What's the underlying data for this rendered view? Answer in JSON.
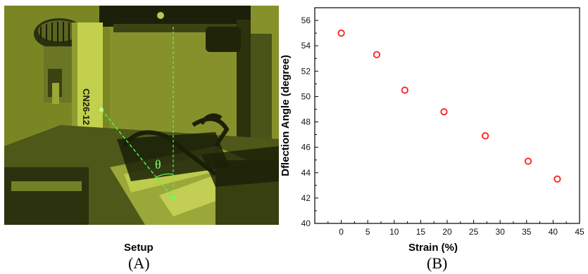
{
  "panel_a": {
    "label_text": "CN26-12",
    "angle_symbol": "θ",
    "caption": "Setup",
    "letter": "(A)"
  },
  "panel_b": {
    "letter": "(B)"
  },
  "colors": {
    "photo_tint": "#8c9a2a",
    "laser_green": "#48ff4a",
    "marker": "#ff1a1a"
  },
  "chart_data": {
    "type": "scatter",
    "title": "",
    "xlabel": "Strain (%)",
    "ylabel": "Dflection Angle (degree)",
    "xlim": [
      -5,
      45
    ],
    "ylim": [
      40,
      57
    ],
    "x_ticks": [
      0,
      5,
      10,
      15,
      20,
      25,
      30,
      35,
      40,
      45
    ],
    "y_ticks": [
      40,
      42,
      44,
      46,
      48,
      50,
      52,
      54,
      56
    ],
    "grid": false,
    "series": [
      {
        "marker": "open-circle",
        "points": [
          {
            "x": 0,
            "y": 55.0
          },
          {
            "x": 6.7,
            "y": 53.3
          },
          {
            "x": 12.0,
            "y": 50.5
          },
          {
            "x": 19.4,
            "y": 48.8
          },
          {
            "x": 27.2,
            "y": 46.9
          },
          {
            "x": 35.3,
            "y": 44.9
          },
          {
            "x": 40.8,
            "y": 43.5
          }
        ]
      }
    ]
  }
}
